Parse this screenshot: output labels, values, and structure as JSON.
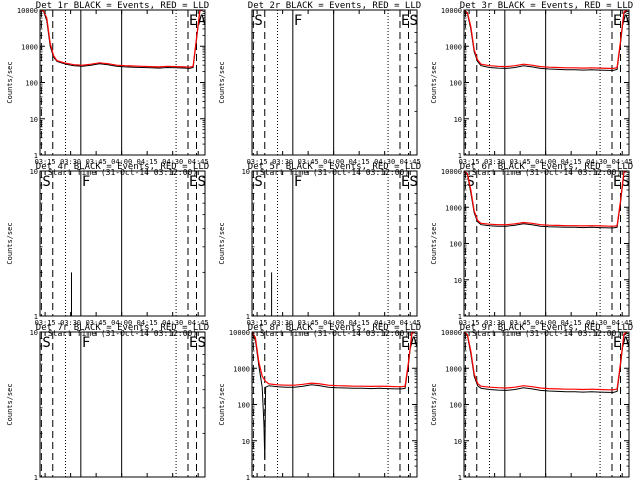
{
  "colors": {
    "events": "#000000",
    "lld": "#ff0000",
    "background": "#ffffff"
  },
  "figure": {
    "x_ticks": [
      "03:15",
      "03:30",
      "03:45",
      "04:00",
      "04:15",
      "04:30",
      "04:45"
    ],
    "xlabel": "Start Time (31-Oct-14 03:12:00)",
    "ylabel": "Counts/sec",
    "x_range_minutes_after_03_12": [
      0,
      97
    ],
    "markers": [
      {
        "label": "S",
        "minute": 0.8,
        "style": "dashed"
      },
      {
        "label": "",
        "minute": 7.5,
        "style": "dashed"
      },
      {
        "label": "",
        "minute": 15,
        "style": "dotted"
      },
      {
        "label": "F",
        "minute": 24,
        "style": "solid"
      },
      {
        "label": "",
        "minute": 48,
        "style": "solid"
      },
      {
        "label": "",
        "minute": 80,
        "style": "dotted"
      },
      {
        "label": "E",
        "minute": 87,
        "style": "dashed"
      },
      {
        "label": "S",
        "minute": 92,
        "style": "dashed"
      }
    ]
  },
  "chart_data": [
    {
      "type": "line",
      "title": "Det 1r BLACK = Events, RED = LLD",
      "yscale": "log",
      "ylim": [
        1,
        10000
      ],
      "y_ticks": [
        "1",
        "10",
        "100",
        "1000",
        "10000"
      ],
      "markers_shown": [
        "",
        "",
        "",
        "",
        "",
        "",
        "E",
        "A"
      ],
      "series": [
        {
          "name": "Events",
          "x": [
            0,
            2,
            4,
            6,
            8,
            10,
            15,
            20,
            25,
            30,
            35,
            40,
            45,
            50,
            55,
            60,
            65,
            70,
            75,
            80,
            85,
            88,
            90,
            92,
            94,
            96
          ],
          "y": [
            10000,
            9500,
            5000,
            1000,
            500,
            380,
            320,
            290,
            280,
            300,
            330,
            310,
            280,
            270,
            265,
            260,
            255,
            250,
            260,
            255,
            250,
            245,
            260,
            1500,
            9500,
            10000
          ]
        },
        {
          "name": "LLD",
          "x": [
            0,
            2,
            4,
            6,
            8,
            10,
            15,
            20,
            25,
            30,
            35,
            40,
            45,
            50,
            55,
            60,
            65,
            70,
            75,
            80,
            85,
            88,
            90,
            92,
            94,
            96
          ],
          "y": [
            10000,
            9500,
            6000,
            1200,
            550,
            400,
            340,
            310,
            300,
            320,
            350,
            330,
            300,
            290,
            285,
            280,
            275,
            270,
            280,
            275,
            270,
            265,
            280,
            1700,
            9800,
            10000
          ]
        }
      ]
    },
    {
      "type": "line",
      "title": "Det 2r BLACK = Events, RED = LLD",
      "yscale": "log",
      "ylim": [
        1,
        10
      ],
      "y_ticks": [],
      "markers_shown": [
        "S",
        "",
        "",
        "F",
        "",
        "",
        "E",
        "S"
      ],
      "series": []
    },
    {
      "type": "line",
      "title": "Det 3r BLACK = Events, RED = LLD",
      "yscale": "log",
      "ylim": [
        1,
        10000
      ],
      "y_ticks": [
        "1",
        "10",
        "100",
        "1000",
        "10000"
      ],
      "markers_shown": [
        "",
        "",
        "",
        "",
        "",
        "",
        "E",
        "A"
      ],
      "series": [
        {
          "name": "Events",
          "x": [
            0,
            2,
            4,
            6,
            8,
            10,
            15,
            20,
            25,
            30,
            35,
            40,
            45,
            50,
            55,
            60,
            65,
            70,
            75,
            80,
            85,
            88,
            90,
            92,
            94,
            96
          ],
          "y": [
            9000,
            8000,
            3000,
            700,
            380,
            290,
            260,
            250,
            245,
            260,
            290,
            270,
            245,
            235,
            230,
            225,
            225,
            220,
            225,
            220,
            215,
            215,
            230,
            1200,
            8000,
            9500
          ]
        },
        {
          "name": "LLD",
          "x": [
            0,
            2,
            4,
            6,
            8,
            10,
            15,
            20,
            25,
            30,
            35,
            40,
            45,
            50,
            55,
            60,
            65,
            70,
            75,
            80,
            85,
            88,
            90,
            92,
            94,
            96
          ],
          "y": [
            9500,
            8500,
            3500,
            800,
            420,
            320,
            290,
            280,
            275,
            290,
            320,
            300,
            275,
            265,
            260,
            255,
            255,
            250,
            255,
            250,
            245,
            245,
            260,
            1400,
            8800,
            10000
          ]
        }
      ]
    },
    {
      "type": "line",
      "title": "Det 4r BLACK = Events, RED = LLD",
      "yscale": "log",
      "ylim": [
        1,
        10
      ],
      "y_ticks": [
        "1",
        "10"
      ],
      "markers_shown": [
        "S",
        "",
        "",
        "F",
        "",
        "",
        "E",
        "S"
      ],
      "series": [
        {
          "name": "Events",
          "x": [
            18.5,
            18.5
          ],
          "y": [
            1,
            2
          ]
        }
      ]
    },
    {
      "type": "line",
      "title": "Det 5r BLACK = Events, RED = LLD",
      "yscale": "log",
      "ylim": [
        1,
        10
      ],
      "y_ticks": [
        "1",
        "10"
      ],
      "markers_shown": [
        "S",
        "",
        "",
        "F",
        "",
        "",
        "E",
        "S"
      ],
      "series": [
        {
          "name": "Events",
          "x": [
            11.5,
            11.5
          ],
          "y": [
            1,
            2
          ]
        }
      ]
    },
    {
      "type": "line",
      "title": "Det 6r BLACK = Events, RED = LLD",
      "yscale": "log",
      "ylim": [
        1,
        10000
      ],
      "y_ticks": [
        "1",
        "10",
        "100",
        "1000",
        "10000"
      ],
      "markers_shown": [
        "S",
        "",
        "",
        "",
        "",
        "",
        "E",
        "S"
      ],
      "series": [
        {
          "name": "Events",
          "x": [
            0,
            2,
            4,
            6,
            8,
            10,
            15,
            20,
            25,
            30,
            35,
            40,
            45,
            50,
            55,
            60,
            65,
            70,
            75,
            80,
            85,
            88,
            90,
            92,
            94,
            96
          ],
          "y": [
            9500,
            8000,
            2500,
            700,
            400,
            330,
            310,
            300,
            300,
            320,
            350,
            330,
            300,
            290,
            285,
            280,
            280,
            275,
            280,
            275,
            270,
            270,
            280,
            1300,
            9000,
            10000
          ]
        },
        {
          "name": "LLD",
          "x": [
            0,
            2,
            4,
            6,
            8,
            10,
            15,
            20,
            25,
            30,
            35,
            40,
            45,
            50,
            55,
            60,
            65,
            70,
            75,
            80,
            85,
            88,
            90,
            92,
            94,
            96
          ],
          "y": [
            10000,
            8500,
            3000,
            800,
            430,
            360,
            340,
            330,
            330,
            350,
            380,
            360,
            330,
            320,
            315,
            310,
            310,
            305,
            310,
            305,
            300,
            300,
            310,
            1500,
            9500,
            10000
          ]
        }
      ]
    },
    {
      "type": "line",
      "title": "Det 7r BLACK = Events, RED = LLD",
      "yscale": "log",
      "ylim": [
        1,
        10
      ],
      "y_ticks": [
        "1",
        "10"
      ],
      "markers_shown": [
        "S",
        "",
        "",
        "F",
        "",
        "",
        "E",
        "S"
      ],
      "series": []
    },
    {
      "type": "line",
      "title": "Det 8r BLACK = Events, RED = LLD",
      "yscale": "log",
      "ylim": [
        1,
        10000
      ],
      "y_ticks": [
        "1",
        "10",
        "100",
        "1000",
        "10000"
      ],
      "markers_shown": [
        "",
        "",
        "",
        "",
        "",
        "",
        "E",
        "A"
      ],
      "series": [
        {
          "name": "Events",
          "x": [
            0,
            2,
            4,
            5,
            6,
            7,
            7.5,
            8,
            10,
            15,
            20,
            25,
            30,
            35,
            40,
            45,
            50,
            55,
            60,
            65,
            70,
            75,
            80,
            85,
            88,
            90,
            92,
            94,
            96
          ],
          "y": [
            9500,
            6000,
            1200,
            600,
            300,
            30,
            3,
            300,
            330,
            310,
            300,
            300,
            320,
            350,
            330,
            300,
            290,
            285,
            280,
            280,
            275,
            280,
            275,
            270,
            270,
            280,
            1300,
            9000,
            10000
          ]
        },
        {
          "name": "LLD",
          "x": [
            0,
            2,
            4,
            6,
            8,
            10,
            15,
            20,
            25,
            30,
            35,
            40,
            45,
            50,
            55,
            60,
            65,
            70,
            75,
            80,
            85,
            88,
            90,
            92,
            94,
            96
          ],
          "y": [
            10000,
            7000,
            1500,
            600,
            430,
            370,
            350,
            340,
            340,
            360,
            390,
            370,
            340,
            330,
            325,
            320,
            320,
            315,
            320,
            315,
            310,
            310,
            320,
            1500,
            9500,
            10000
          ]
        }
      ]
    },
    {
      "type": "line",
      "title": "Det 9r BLACK = Events, RED = LLD",
      "yscale": "log",
      "ylim": [
        1,
        10000
      ],
      "y_ticks": [
        "1",
        "10",
        "100",
        "1000",
        "10000"
      ],
      "markers_shown": [
        "",
        "",
        "",
        "",
        "",
        "",
        "E",
        "A"
      ],
      "series": [
        {
          "name": "Events",
          "x": [
            0,
            2,
            4,
            6,
            8,
            10,
            15,
            20,
            25,
            30,
            35,
            40,
            45,
            50,
            55,
            60,
            65,
            70,
            75,
            80,
            85,
            88,
            90,
            92,
            94,
            96
          ],
          "y": [
            9500,
            8000,
            2500,
            600,
            330,
            280,
            260,
            250,
            245,
            260,
            290,
            270,
            245,
            235,
            230,
            225,
            225,
            220,
            225,
            220,
            215,
            215,
            230,
            1200,
            8000,
            9500
          ]
        },
        {
          "name": "LLD",
          "x": [
            0,
            2,
            4,
            6,
            8,
            10,
            15,
            20,
            25,
            30,
            35,
            40,
            45,
            50,
            55,
            60,
            65,
            70,
            75,
            80,
            85,
            88,
            90,
            92,
            94,
            96
          ],
          "y": [
            10000,
            8500,
            3000,
            700,
            380,
            320,
            300,
            290,
            285,
            300,
            330,
            310,
            285,
            275,
            270,
            265,
            265,
            260,
            265,
            260,
            255,
            255,
            270,
            1400,
            8800,
            10000
          ]
        }
      ]
    }
  ]
}
